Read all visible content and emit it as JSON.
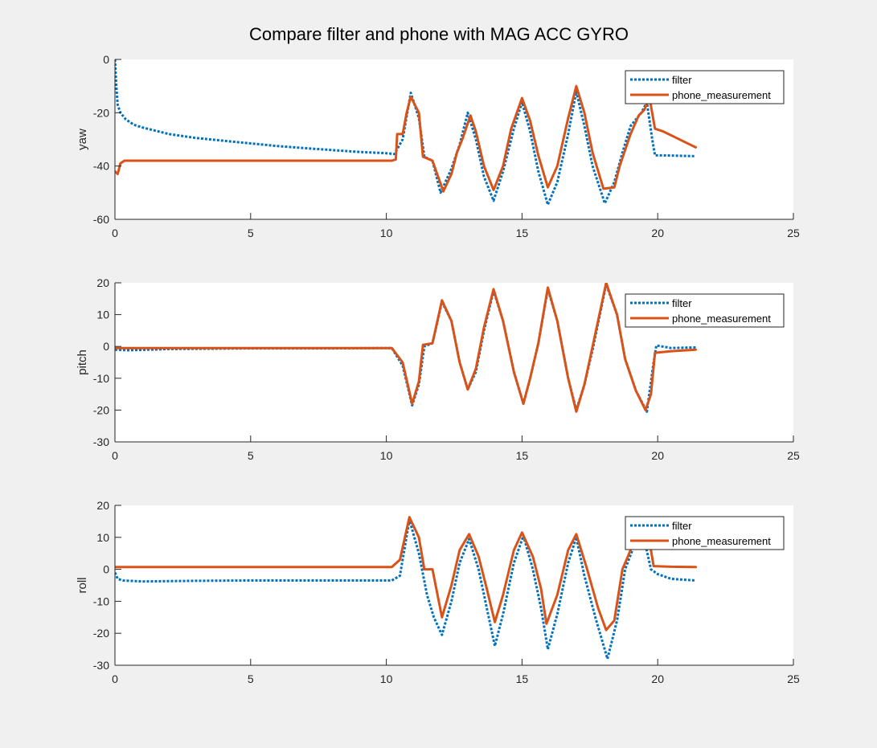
{
  "figure": {
    "title": "Compare filter and phone with MAG ACC GYRO",
    "background": "#f0f0f0"
  },
  "colors": {
    "filter": "#0072bd",
    "phone_measurement": "#d95319",
    "axes_background": "#ffffff",
    "axis_line": "#262626"
  },
  "chart_data": [
    {
      "type": "line",
      "ylabel": "yaw",
      "xlim": [
        0,
        25
      ],
      "ylim": [
        -60,
        0
      ],
      "xticks": [
        0,
        5,
        10,
        15,
        20,
        25
      ],
      "yticks": [
        -60,
        -40,
        -20,
        0
      ],
      "xtick_labels": [
        "0",
        "5",
        "10",
        "15",
        "20",
        "25"
      ],
      "ytick_labels": [
        "-60",
        "-40",
        "-20",
        "0"
      ],
      "legend": {
        "placement": "top-right",
        "entries": [
          "filter",
          "phone_measurement"
        ]
      },
      "series": [
        {
          "name": "filter",
          "style": "dotted",
          "points": [
            [
              0,
              0
            ],
            [
              0.05,
              -10
            ],
            [
              0.1,
              -17
            ],
            [
              0.2,
              -20
            ],
            [
              0.4,
              -22.5
            ],
            [
              0.7,
              -24.5
            ],
            [
              1,
              -25.5
            ],
            [
              2,
              -28
            ],
            [
              3,
              -29.5
            ],
            [
              4,
              -30.5
            ],
            [
              5,
              -31.5
            ],
            [
              6,
              -32.5
            ],
            [
              7,
              -33.3
            ],
            [
              8,
              -34
            ],
            [
              9,
              -34.7
            ],
            [
              10,
              -35.2
            ],
            [
              10.3,
              -35.5
            ],
            [
              10.6,
              -30
            ],
            [
              10.9,
              -12.5
            ],
            [
              11.2,
              -22
            ],
            [
              11.4,
              -36.5
            ],
            [
              11.7,
              -38
            ],
            [
              12.0,
              -50
            ],
            [
              12.4,
              -41
            ],
            [
              12.7,
              -32
            ],
            [
              13.0,
              -20
            ],
            [
              13.3,
              -30
            ],
            [
              13.6,
              -44
            ],
            [
              13.95,
              -53
            ],
            [
              14.3,
              -42
            ],
            [
              14.7,
              -26
            ],
            [
              15.0,
              -16
            ],
            [
              15.3,
              -27
            ],
            [
              15.6,
              -42
            ],
            [
              15.95,
              -54.5
            ],
            [
              16.3,
              -46
            ],
            [
              16.7,
              -28
            ],
            [
              17.0,
              -12
            ],
            [
              17.3,
              -25
            ],
            [
              17.6,
              -40
            ],
            [
              18.05,
              -54
            ],
            [
              18.4,
              -46
            ],
            [
              18.7,
              -35
            ],
            [
              19.0,
              -25
            ],
            [
              19.4,
              -20
            ],
            [
              19.6,
              -16
            ],
            [
              19.8,
              -30
            ],
            [
              19.9,
              -36
            ],
            [
              20.2,
              -36
            ],
            [
              21.4,
              -36.3
            ]
          ]
        },
        {
          "name": "phone_measurement",
          "style": "solid",
          "points": [
            [
              0,
              -42
            ],
            [
              0.1,
              -43
            ],
            [
              0.2,
              -39
            ],
            [
              0.35,
              -38
            ],
            [
              1,
              -38
            ],
            [
              3,
              -38
            ],
            [
              5,
              -38
            ],
            [
              7,
              -38
            ],
            [
              9,
              -38
            ],
            [
              10.2,
              -38
            ],
            [
              10.35,
              -37.5
            ],
            [
              10.4,
              -28
            ],
            [
              10.6,
              -28
            ],
            [
              10.75,
              -20
            ],
            [
              10.9,
              -14
            ],
            [
              11.2,
              -20
            ],
            [
              11.35,
              -36.5
            ],
            [
              11.7,
              -38
            ],
            [
              12.1,
              -49.5
            ],
            [
              12.4,
              -43
            ],
            [
              12.6,
              -35
            ],
            [
              12.8,
              -30
            ],
            [
              13.1,
              -21
            ],
            [
              13.3,
              -27
            ],
            [
              13.6,
              -40
            ],
            [
              13.95,
              -49
            ],
            [
              14.3,
              -40
            ],
            [
              14.6,
              -26
            ],
            [
              15.0,
              -14.5
            ],
            [
              15.3,
              -23
            ],
            [
              15.6,
              -36
            ],
            [
              15.95,
              -48
            ],
            [
              16.3,
              -40
            ],
            [
              16.7,
              -22
            ],
            [
              17.0,
              -10
            ],
            [
              17.3,
              -20
            ],
            [
              17.6,
              -35
            ],
            [
              18.0,
              -48.5
            ],
            [
              18.4,
              -48
            ],
            [
              18.6,
              -40
            ],
            [
              19.0,
              -28
            ],
            [
              19.3,
              -21
            ],
            [
              19.5,
              -19
            ],
            [
              19.7,
              -14.5
            ],
            [
              19.9,
              -26
            ],
            [
              20.2,
              -27
            ],
            [
              20.6,
              -29
            ],
            [
              21.0,
              -31
            ],
            [
              21.4,
              -33
            ]
          ]
        }
      ]
    },
    {
      "type": "line",
      "ylabel": "pitch",
      "xlim": [
        0,
        25
      ],
      "ylim": [
        -30,
        20
      ],
      "xticks": [
        0,
        5,
        10,
        15,
        20,
        25
      ],
      "yticks": [
        -30,
        -20,
        -10,
        0,
        10,
        20
      ],
      "xtick_labels": [
        "0",
        "5",
        "10",
        "15",
        "20",
        "25"
      ],
      "ytick_labels": [
        "-30",
        "-20",
        "-10",
        "0",
        "10",
        "20"
      ],
      "legend": {
        "placement": "top-right",
        "entries": [
          "filter",
          "phone_measurement"
        ]
      },
      "series": [
        {
          "name": "filter",
          "style": "dotted",
          "points": [
            [
              0,
              -1
            ],
            [
              0.5,
              -1.2
            ],
            [
              2,
              -0.8
            ],
            [
              5,
              -0.6
            ],
            [
              8,
              -0.6
            ],
            [
              10.2,
              -0.5
            ],
            [
              10.6,
              -6
            ],
            [
              10.95,
              -18.5
            ],
            [
              11.2,
              -12
            ],
            [
              11.4,
              0
            ],
            [
              11.7,
              1
            ],
            [
              12.05,
              14
            ],
            [
              12.4,
              8
            ],
            [
              12.7,
              -5
            ],
            [
              13.0,
              -13.5
            ],
            [
              13.3,
              -8
            ],
            [
              13.6,
              5
            ],
            [
              13.95,
              17.5
            ],
            [
              14.3,
              8
            ],
            [
              14.7,
              -8
            ],
            [
              15.05,
              -18
            ],
            [
              15.3,
              -10
            ],
            [
              15.6,
              1
            ],
            [
              15.95,
              18
            ],
            [
              16.3,
              8
            ],
            [
              16.7,
              -10
            ],
            [
              17.0,
              -20
            ],
            [
              17.3,
              -12
            ],
            [
              17.6,
              -1
            ],
            [
              18.1,
              19.5
            ],
            [
              18.5,
              10
            ],
            [
              18.8,
              -4
            ],
            [
              19.2,
              -14
            ],
            [
              19.6,
              -20.5
            ],
            [
              19.85,
              -5
            ],
            [
              19.95,
              0.3
            ],
            [
              20.5,
              -0.5
            ],
            [
              21.4,
              -0.3
            ]
          ]
        },
        {
          "name": "phone_measurement",
          "style": "solid",
          "points": [
            [
              0,
              -0.5
            ],
            [
              2,
              -0.5
            ],
            [
              5,
              -0.5
            ],
            [
              8,
              -0.5
            ],
            [
              10.2,
              -0.5
            ],
            [
              10.6,
              -5
            ],
            [
              10.95,
              -18
            ],
            [
              11.2,
              -11
            ],
            [
              11.35,
              0.5
            ],
            [
              11.7,
              1
            ],
            [
              12.05,
              14.5
            ],
            [
              12.4,
              8
            ],
            [
              12.7,
              -5
            ],
            [
              13.0,
              -13.5
            ],
            [
              13.3,
              -7
            ],
            [
              13.6,
              6
            ],
            [
              13.95,
              18
            ],
            [
              14.3,
              8
            ],
            [
              14.7,
              -8
            ],
            [
              15.05,
              -18
            ],
            [
              15.3,
              -10
            ],
            [
              15.6,
              1
            ],
            [
              15.95,
              18.5
            ],
            [
              16.3,
              8
            ],
            [
              16.7,
              -10
            ],
            [
              17.0,
              -20.5
            ],
            [
              17.3,
              -12
            ],
            [
              17.6,
              0
            ],
            [
              18.1,
              20
            ],
            [
              18.5,
              10
            ],
            [
              18.8,
              -4
            ],
            [
              19.2,
              -14
            ],
            [
              19.55,
              -20
            ],
            [
              19.75,
              -15
            ],
            [
              19.9,
              -2
            ],
            [
              20.5,
              -1.5
            ],
            [
              21.4,
              -1
            ]
          ]
        }
      ]
    },
    {
      "type": "line",
      "ylabel": "roll",
      "xlim": [
        0,
        25
      ],
      "ylim": [
        -30,
        20
      ],
      "xticks": [
        0,
        5,
        10,
        15,
        20,
        25
      ],
      "yticks": [
        -30,
        -20,
        -10,
        0,
        10,
        20
      ],
      "xtick_labels": [
        "0",
        "5",
        "10",
        "15",
        "20",
        "25"
      ],
      "ytick_labels": [
        "-30",
        "-20",
        "-10",
        "0",
        "10",
        "20"
      ],
      "legend": {
        "placement": "top-right",
        "entries": [
          "filter",
          "phone_measurement"
        ]
      },
      "series": [
        {
          "name": "filter",
          "style": "dotted",
          "points": [
            [
              0,
              -1
            ],
            [
              0.1,
              -3
            ],
            [
              0.3,
              -3.5
            ],
            [
              1,
              -3.8
            ],
            [
              3,
              -3.6
            ],
            [
              5,
              -3.5
            ],
            [
              8,
              -3.5
            ],
            [
              10.2,
              -3.5
            ],
            [
              10.5,
              -2
            ],
            [
              10.85,
              15.5
            ],
            [
              11.2,
              5
            ],
            [
              11.5,
              -8
            ],
            [
              11.75,
              -15
            ],
            [
              12.05,
              -20.5
            ],
            [
              12.4,
              -10
            ],
            [
              12.7,
              2
            ],
            [
              13.05,
              9.5
            ],
            [
              13.4,
              0
            ],
            [
              13.7,
              -12
            ],
            [
              14.0,
              -24
            ],
            [
              14.3,
              -14
            ],
            [
              14.7,
              2
            ],
            [
              15.05,
              10.5
            ],
            [
              15.4,
              0
            ],
            [
              15.7,
              -12
            ],
            [
              15.95,
              -25
            ],
            [
              16.3,
              -14
            ],
            [
              16.7,
              2
            ],
            [
              17.0,
              10
            ],
            [
              17.3,
              -2
            ],
            [
              17.7,
              -15
            ],
            [
              18.15,
              -28
            ],
            [
              18.5,
              -16
            ],
            [
              18.8,
              0
            ],
            [
              19.2,
              9
            ],
            [
              19.5,
              9.5
            ],
            [
              19.75,
              0
            ],
            [
              20.0,
              -1.5
            ],
            [
              20.5,
              -3
            ],
            [
              21.4,
              -3.5
            ]
          ]
        },
        {
          "name": "phone_measurement",
          "style": "solid",
          "points": [
            [
              0,
              0.7
            ],
            [
              2,
              0.7
            ],
            [
              5,
              0.7
            ],
            [
              8,
              0.7
            ],
            [
              10.2,
              0.7
            ],
            [
              10.5,
              3
            ],
            [
              10.85,
              16.3
            ],
            [
              11.2,
              10
            ],
            [
              11.4,
              0
            ],
            [
              11.7,
              0
            ],
            [
              12.05,
              -15
            ],
            [
              12.4,
              -5
            ],
            [
              12.7,
              6
            ],
            [
              13.05,
              11
            ],
            [
              13.4,
              4
            ],
            [
              13.7,
              -6
            ],
            [
              14.0,
              -16.5
            ],
            [
              14.3,
              -8
            ],
            [
              14.7,
              6
            ],
            [
              15.0,
              11.5
            ],
            [
              15.4,
              4
            ],
            [
              15.7,
              -6
            ],
            [
              15.9,
              -17
            ],
            [
              16.3,
              -8
            ],
            [
              16.7,
              6
            ],
            [
              17.0,
              11
            ],
            [
              17.4,
              0
            ],
            [
              17.8,
              -12
            ],
            [
              18.1,
              -19
            ],
            [
              18.4,
              -16
            ],
            [
              18.7,
              0
            ],
            [
              19.1,
              8
            ],
            [
              19.5,
              11
            ],
            [
              19.75,
              6
            ],
            [
              19.85,
              1
            ],
            [
              20.5,
              0.8
            ],
            [
              21.4,
              0.7
            ]
          ]
        }
      ]
    }
  ]
}
